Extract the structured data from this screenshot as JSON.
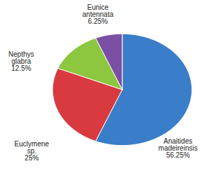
{
  "chart_data": {
    "type": "pie",
    "categories": [
      "Anaitides madeireinsis",
      "Euclymene sp.",
      "Nepthys glabra",
      "Eunice antennata"
    ],
    "values": [
      56.25,
      25,
      12.5,
      6.25
    ],
    "value_labels": [
      "56.25%",
      "25%",
      "12.5%",
      "6.25%"
    ],
    "colors": [
      "#3a7dc9",
      "#d83a3f",
      "#8dc63f",
      "#7b4fa3"
    ],
    "data_labels": true
  }
}
